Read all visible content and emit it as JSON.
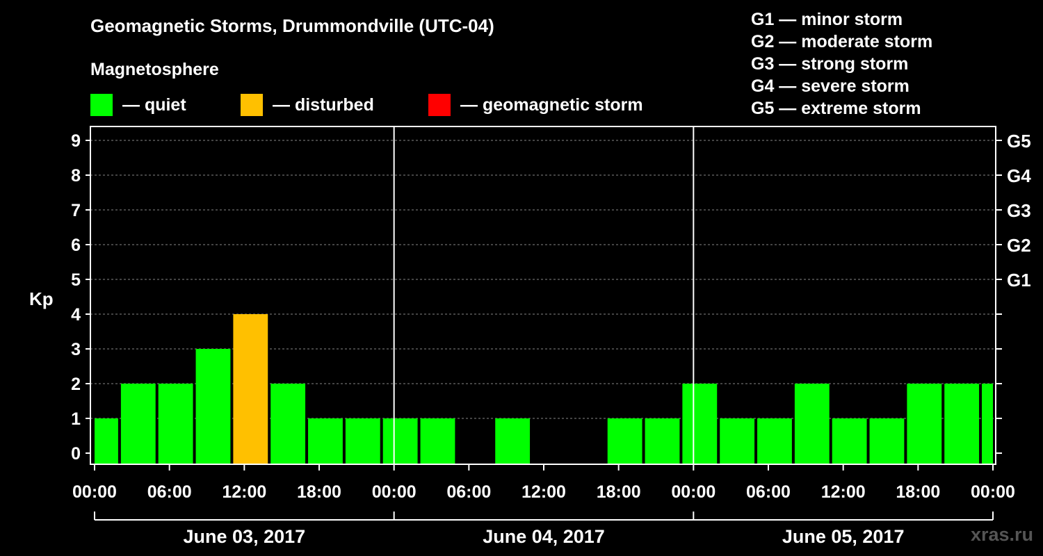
{
  "colors": {
    "quiet": "#00ff00",
    "disturbed": "#ffc000",
    "storm": "#ff0000",
    "background": "#000000",
    "grid": "#888888",
    "axis": "#ffffff"
  },
  "legend": {
    "subtitle": "Magnetosphere",
    "items": [
      {
        "label": "— quiet",
        "color": "#00ff00"
      },
      {
        "label": "— disturbed",
        "color": "#ffc000"
      },
      {
        "label": "— geomagnetic storm",
        "color": "#ff0000"
      }
    ]
  },
  "storm_scale": [
    "G1 — minor storm",
    "G2 — moderate storm",
    "G3 — strong storm",
    "G4 — severe storm",
    "G5 — extreme storm"
  ],
  "watermark": "xras.ru",
  "chart_data": {
    "type": "bar",
    "title": "Geomagnetic Storms, Drummondville (UTC-04)",
    "ylabel": "Kp",
    "ylim": [
      0,
      9
    ],
    "y_ticks": [
      "0",
      "1",
      "2",
      "3",
      "4",
      "5",
      "6",
      "7",
      "8",
      "9"
    ],
    "right_labels": [
      {
        "kp": 5,
        "label": "G1"
      },
      {
        "kp": 6,
        "label": "G2"
      },
      {
        "kp": 7,
        "label": "G3"
      },
      {
        "kp": 8,
        "label": "G4"
      },
      {
        "kp": 9,
        "label": "G5"
      }
    ],
    "x_range_hours": [
      0,
      72
    ],
    "x_tick_labels": [
      "00:00",
      "06:00",
      "12:00",
      "18:00",
      "00:00",
      "06:00",
      "12:00",
      "18:00",
      "00:00",
      "06:00",
      "12:00",
      "18:00",
      "00:00"
    ],
    "days": [
      "June 03, 2017",
      "June 04, 2017",
      "June 05, 2017"
    ],
    "grid": true,
    "bars": [
      {
        "start_hour": 0,
        "end_hour": 2,
        "kp": 1,
        "status": "quiet"
      },
      {
        "start_hour": 2,
        "end_hour": 5,
        "kp": 2,
        "status": "quiet"
      },
      {
        "start_hour": 5,
        "end_hour": 8,
        "kp": 2,
        "status": "quiet"
      },
      {
        "start_hour": 8,
        "end_hour": 11,
        "kp": 3,
        "status": "quiet"
      },
      {
        "start_hour": 11,
        "end_hour": 14,
        "kp": 4,
        "status": "disturbed"
      },
      {
        "start_hour": 14,
        "end_hour": 17,
        "kp": 2,
        "status": "quiet"
      },
      {
        "start_hour": 17,
        "end_hour": 20,
        "kp": 1,
        "status": "quiet"
      },
      {
        "start_hour": 20,
        "end_hour": 23,
        "kp": 1,
        "status": "quiet"
      },
      {
        "start_hour": 23,
        "end_hour": 26,
        "kp": 1,
        "status": "quiet"
      },
      {
        "start_hour": 26,
        "end_hour": 29,
        "kp": 1,
        "status": "quiet"
      },
      {
        "start_hour": 29,
        "end_hour": 32,
        "kp": 0,
        "status": "quiet"
      },
      {
        "start_hour": 32,
        "end_hour": 35,
        "kp": 1,
        "status": "quiet"
      },
      {
        "start_hour": 35,
        "end_hour": 38,
        "kp": 0,
        "status": "quiet"
      },
      {
        "start_hour": 38,
        "end_hour": 41,
        "kp": 0,
        "status": "quiet"
      },
      {
        "start_hour": 41,
        "end_hour": 44,
        "kp": 1,
        "status": "quiet"
      },
      {
        "start_hour": 44,
        "end_hour": 47,
        "kp": 1,
        "status": "quiet"
      },
      {
        "start_hour": 47,
        "end_hour": 50,
        "kp": 2,
        "status": "quiet"
      },
      {
        "start_hour": 50,
        "end_hour": 53,
        "kp": 1,
        "status": "quiet"
      },
      {
        "start_hour": 53,
        "end_hour": 56,
        "kp": 1,
        "status": "quiet"
      },
      {
        "start_hour": 56,
        "end_hour": 59,
        "kp": 2,
        "status": "quiet"
      },
      {
        "start_hour": 59,
        "end_hour": 62,
        "kp": 1,
        "status": "quiet"
      },
      {
        "start_hour": 62,
        "end_hour": 65,
        "kp": 1,
        "status": "quiet"
      },
      {
        "start_hour": 65,
        "end_hour": 68,
        "kp": 2,
        "status": "quiet"
      },
      {
        "start_hour": 68,
        "end_hour": 71,
        "kp": 2,
        "status": "quiet"
      },
      {
        "start_hour": 71,
        "end_hour": 72,
        "kp": 2,
        "status": "quiet"
      }
    ]
  }
}
